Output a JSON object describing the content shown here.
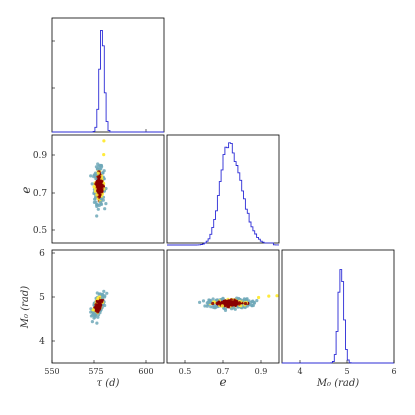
{
  "chart_data": {
    "type": "scatter",
    "subtype": "corner-plot",
    "parameters": [
      {
        "key": "tau",
        "label": "τ (d)",
        "range": [
          550,
          605
        ],
        "ticks": [
          550,
          575,
          600
        ]
      },
      {
        "key": "e",
        "label": "e",
        "range": [
          0.43,
          0.98
        ],
        "ticks": [
          0.5,
          0.7,
          0.9
        ]
      },
      {
        "key": "M0",
        "label": "M₀ (rad)",
        "range": [
          3.5,
          6.0
        ],
        "ticks": [
          4,
          5,
          6
        ]
      }
    ],
    "marginals": [
      {
        "param": "tau",
        "mode": 574.5,
        "peak_center": 574.5,
        "peak_halfwidth": 1.2
      },
      {
        "param": "e",
        "mode": 0.72,
        "peak_center": 0.73,
        "peak_halfwidth": 0.04,
        "tail_to": 0.95
      },
      {
        "param": "M0",
        "mode": 4.83,
        "peak_center": 4.82,
        "peak_halfwidth": 0.06
      }
    ],
    "scatter_panels": [
      {
        "x": "tau",
        "y": "e",
        "center": [
          573.2,
          0.72
        ],
        "spread": [
          1.2,
          0.045
        ],
        "tail": [
          [
            575.4,
            0.88
          ],
          [
            575.5,
            0.95
          ]
        ]
      },
      {
        "x": "tau",
        "y": "M0",
        "center": [
          572.8,
          4.78
        ],
        "spread": [
          1.3,
          0.09
        ],
        "slope": 0.06
      },
      {
        "x": "e",
        "y": "M0",
        "center": [
          0.74,
          4.82
        ],
        "spread": [
          0.05,
          0.05
        ],
        "tail": [
          [
            0.88,
            4.95
          ],
          [
            0.93,
            4.98
          ],
          [
            0.97,
            4.99
          ]
        ]
      }
    ],
    "point_colors": [
      "#8b0000",
      "#ffeb3b",
      "#6fa8b8"
    ],
    "histogram_color": "#2b2bd6",
    "grid": false,
    "legend": "none"
  },
  "labels": {
    "tau": "τ (d)",
    "e_y": "e",
    "e_x": "e",
    "m0_y": "M₀ (rad)",
    "m0_x": "M₀ (rad)",
    "tick_550": "550",
    "tick_575": "575",
    "tick_600": "600",
    "tick_05": "0.5",
    "tick_07": "0.7",
    "tick_09": "0.9",
    "tick_4": "4",
    "tick_5": "5",
    "tick_6": "6"
  }
}
